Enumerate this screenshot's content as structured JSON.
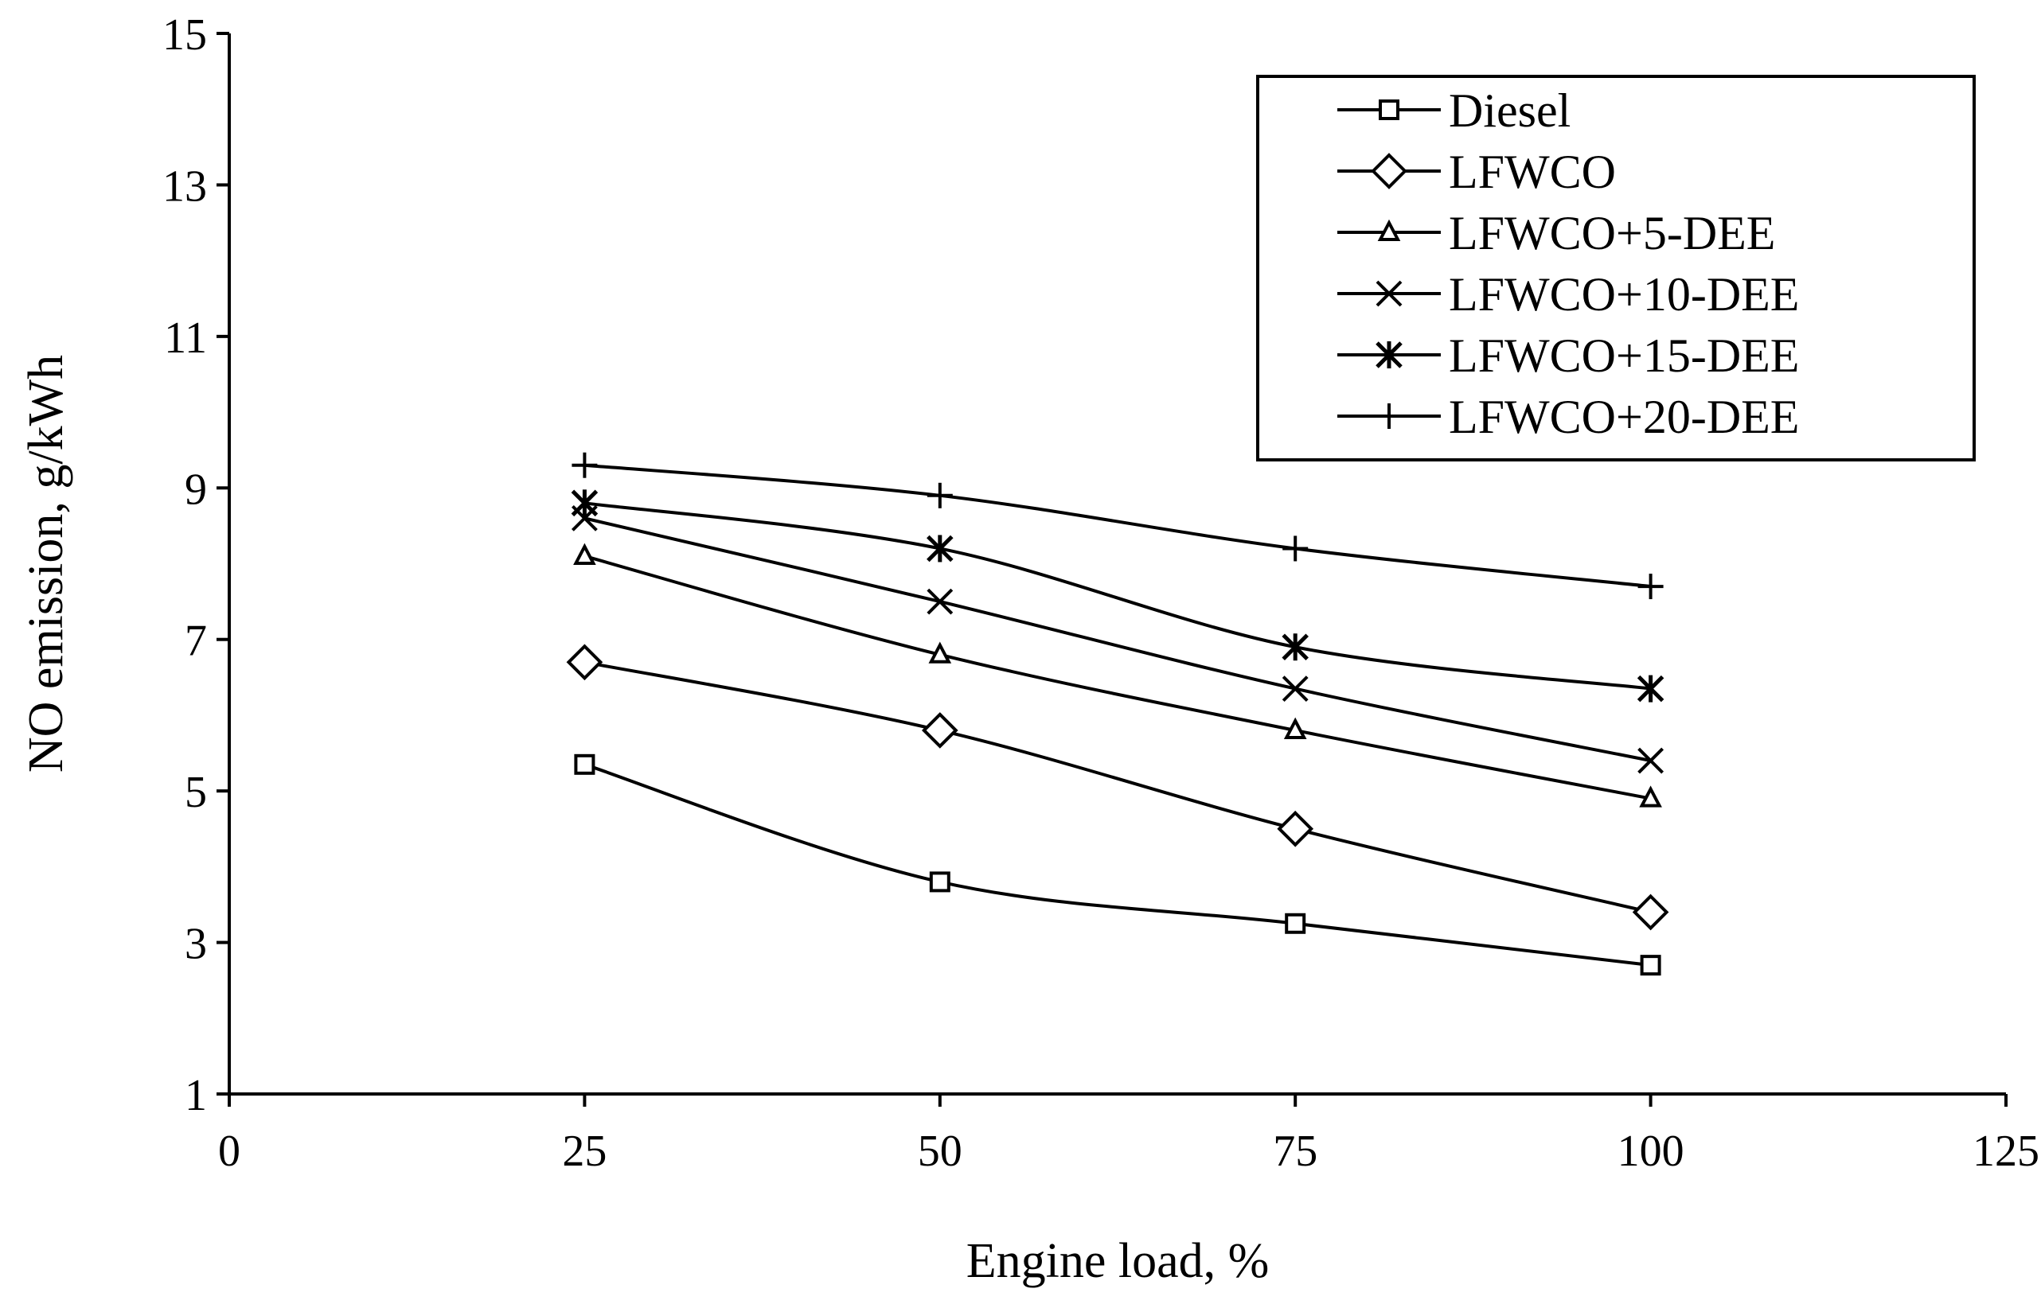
{
  "chart_data": {
    "type": "line",
    "title": "",
    "xlabel": "Engine load, %",
    "ylabel": "NO emission, g/kWh",
    "xlim": [
      0,
      125
    ],
    "ylim": [
      1,
      15
    ],
    "xticks": [
      "0",
      "25",
      "50",
      "75",
      "100",
      "125"
    ],
    "yticks": [
      "1",
      "3",
      "5",
      "7",
      "9",
      "11",
      "13",
      "15"
    ],
    "grid": false,
    "legend_position": "top-right",
    "x": [
      25,
      50,
      75,
      100
    ],
    "series": [
      {
        "name": "Diesel",
        "marker": "square",
        "values": [
          5.35,
          3.8,
          3.25,
          2.7
        ]
      },
      {
        "name": "LFWCO",
        "marker": "diamond",
        "values": [
          6.7,
          5.8,
          4.5,
          3.4
        ]
      },
      {
        "name": "LFWCO+5-DEE",
        "marker": "triangle",
        "values": [
          8.1,
          6.8,
          5.8,
          4.9
        ]
      },
      {
        "name": "LFWCO+10-DEE",
        "marker": "x",
        "values": [
          8.6,
          7.5,
          6.35,
          5.4
        ]
      },
      {
        "name": "LFWCO+15-DEE",
        "marker": "star",
        "values": [
          8.8,
          8.2,
          6.9,
          6.35
        ]
      },
      {
        "name": "LFWCO+20-DEE",
        "marker": "plus",
        "values": [
          9.3,
          8.9,
          8.2,
          7.7
        ]
      }
    ],
    "colors": {
      "line": "#000000",
      "background": "#ffffff"
    }
  }
}
